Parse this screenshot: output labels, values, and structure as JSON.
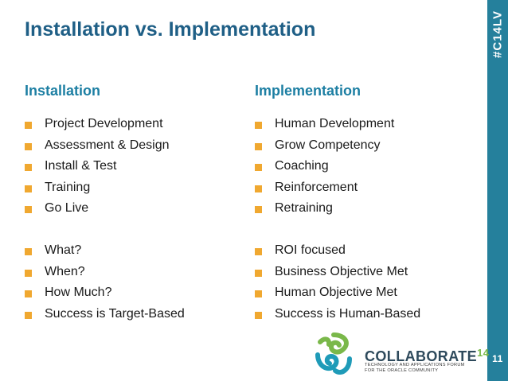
{
  "slide": {
    "title": "Installation vs. Implementation",
    "hashtag": "#C14LV",
    "page_number": "11",
    "left_column": {
      "heading": "Installation",
      "group1": [
        "Project Development",
        "Assessment & Design",
        "Install & Test",
        "Training",
        "Go Live"
      ],
      "group2": [
        "What?",
        "When?",
        "How Much?",
        "Success is Target-Based"
      ]
    },
    "right_column": {
      "heading": "Implementation",
      "group1": [
        "Human Development",
        "Grow Competency",
        "Coaching",
        "Reinforcement",
        "Retraining"
      ],
      "group2": [
        "ROI focused",
        "Business Objective Met",
        "Human Objective Met",
        "Success is Human-Based"
      ]
    },
    "branding": {
      "name": "COLLABORATE",
      "number": "14",
      "tagline_line1": "TECHNOLOGY AND APPLICATIONS FORUM",
      "tagline_line2": "FOR THE ORACLE COMMUNITY"
    }
  },
  "colors": {
    "title": "#1f5f86",
    "heading": "#1d7fa3",
    "bullet": "#f0a830",
    "side_bar": "#25809c",
    "logo_green": "#7ab84a",
    "logo_teal": "#1f9bb8"
  }
}
